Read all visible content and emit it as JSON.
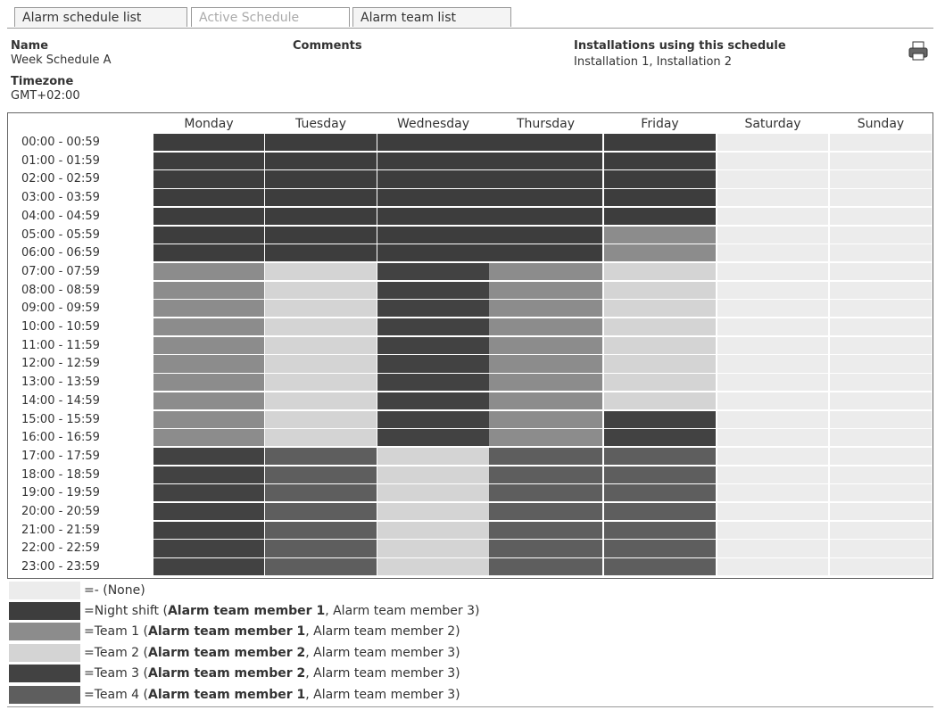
{
  "tabs": [
    {
      "label": "Alarm schedule list",
      "active": false
    },
    {
      "label": "Active Schedule",
      "active": true
    },
    {
      "label": "Alarm team list",
      "active": false
    }
  ],
  "header": {
    "name_label": "Name",
    "name": "Week Schedule A",
    "timezone_label": "Timezone",
    "timezone": "GMT+02:00",
    "comments_label": "Comments",
    "installations_label": "Installations using this schedule",
    "installations": "Installation 1, Installation 2"
  },
  "grid": {
    "days": [
      "Monday",
      "Tuesday",
      "Wednesday",
      "Thursday",
      "Friday",
      "Saturday",
      "Sunday"
    ],
    "timeslots": [
      "00:00 - 00:59",
      "01:00 - 01:59",
      "02:00 - 02:59",
      "03:00 - 03:59",
      "04:00 - 04:59",
      "05:00 - 05:59",
      "06:00 - 06:59",
      "07:00 - 07:59",
      "08:00 - 08:59",
      "09:00 - 09:59",
      "10:00 - 10:59",
      "11:00 - 11:59",
      "12:00 - 12:59",
      "13:00 - 13:59",
      "14:00 - 14:59",
      "15:00 - 15:59",
      "16:00 - 16:59",
      "17:00 - 17:59",
      "18:00 - 18:59",
      "19:00 - 19:59",
      "20:00 - 20:59",
      "21:00 - 21:59",
      "22:00 - 22:59",
      "23:00 - 23:59"
    ],
    "schedule": [
      [
        1,
        1,
        1,
        1,
        1,
        1,
        1,
        2,
        2,
        2,
        2,
        2,
        2,
        2,
        2,
        2,
        2,
        4,
        4,
        4,
        4,
        4,
        4,
        4
      ],
      [
        1,
        1,
        1,
        1,
        1,
        1,
        1,
        3,
        3,
        3,
        3,
        3,
        3,
        3,
        3,
        3,
        3,
        5,
        5,
        5,
        5,
        5,
        5,
        5
      ],
      [
        1,
        1,
        1,
        1,
        1,
        1,
        1,
        4,
        4,
        4,
        4,
        4,
        4,
        4,
        4,
        4,
        4,
        3,
        3,
        3,
        3,
        3,
        3,
        3
      ],
      [
        1,
        1,
        1,
        1,
        1,
        1,
        1,
        2,
        2,
        2,
        2,
        2,
        2,
        2,
        2,
        2,
        2,
        5,
        5,
        5,
        5,
        5,
        5,
        5
      ],
      [
        1,
        1,
        1,
        1,
        1,
        2,
        2,
        3,
        3,
        3,
        3,
        3,
        3,
        3,
        3,
        4,
        4,
        5,
        5,
        5,
        5,
        5,
        5,
        5
      ],
      [
        0,
        0,
        0,
        0,
        0,
        0,
        0,
        0,
        0,
        0,
        0,
        0,
        0,
        0,
        0,
        0,
        0,
        0,
        0,
        0,
        0,
        0,
        0,
        0
      ],
      [
        0,
        0,
        0,
        0,
        0,
        0,
        0,
        0,
        0,
        0,
        0,
        0,
        0,
        0,
        0,
        0,
        0,
        0,
        0,
        0,
        0,
        0,
        0,
        0
      ]
    ]
  },
  "legend": [
    {
      "color": "#ececec",
      "parts": [
        {
          "text": "=- (None)",
          "bold": false
        }
      ]
    },
    {
      "color": "#3d3d3d",
      "parts": [
        {
          "text": "=Night shift (",
          "bold": false
        },
        {
          "text": "Alarm team member 1",
          "bold": true
        },
        {
          "text": ", Alarm team member 3)",
          "bold": false
        }
      ]
    },
    {
      "color": "#8c8c8c",
      "parts": [
        {
          "text": "=Team 1 (",
          "bold": false
        },
        {
          "text": "Alarm team member 1",
          "bold": true
        },
        {
          "text": ", Alarm team member 2)",
          "bold": false
        }
      ]
    },
    {
      "color": "#d4d4d4",
      "parts": [
        {
          "text": "=Team 2 (",
          "bold": false
        },
        {
          "text": "Alarm team member 2",
          "bold": true
        },
        {
          "text": ", Alarm team member 3)",
          "bold": false
        }
      ]
    },
    {
      "color": "#424242",
      "parts": [
        {
          "text": "=Team 3 (",
          "bold": false
        },
        {
          "text": "Alarm team member 2",
          "bold": true
        },
        {
          "text": ", Alarm team member 3)",
          "bold": false
        }
      ]
    },
    {
      "color": "#5e5e5e",
      "parts": [
        {
          "text": "=Team 4 (",
          "bold": false
        },
        {
          "text": "Alarm team member 1",
          "bold": true
        },
        {
          "text": ", Alarm team member 3)",
          "bold": false
        }
      ]
    }
  ]
}
